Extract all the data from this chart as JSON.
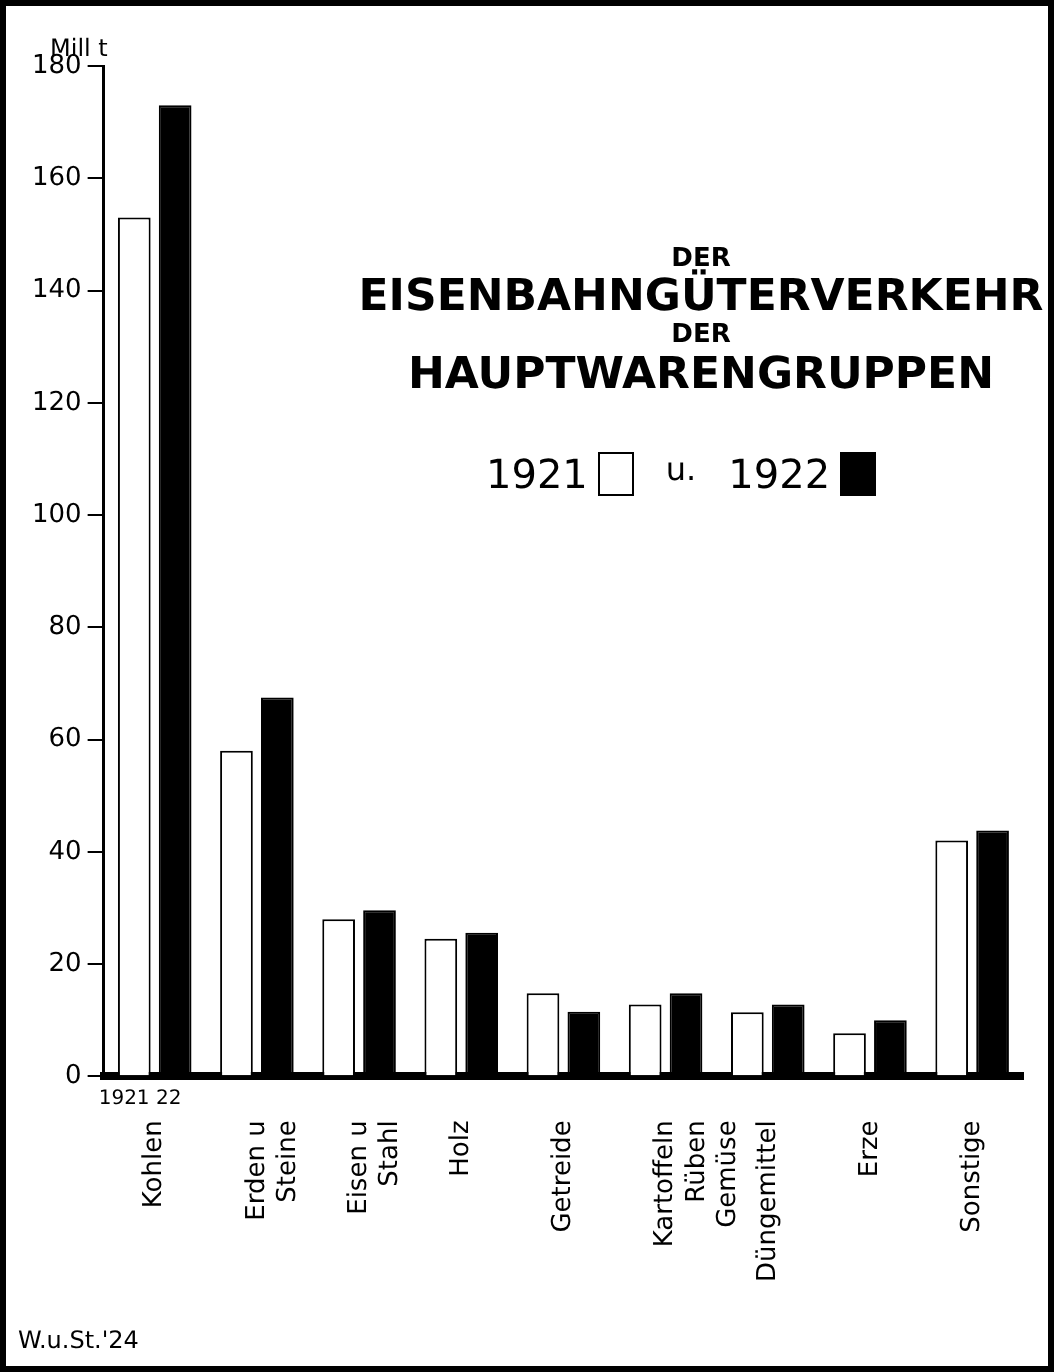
{
  "chart_data": {
    "type": "bar",
    "title": "DER\nEISENBAHNGÜTERVERKEHR\nDER\nHAUPTWARENGRUPPEN",
    "ylabel": "Mill t",
    "categories": [
      "Kohlen",
      "Erden u\nSteine",
      "Eisen u\nStahl",
      "Holz",
      "Getreide",
      "Kartoffeln\nRüben\nGemüse",
      "Düngemittel",
      "Erze",
      "Sonstige"
    ],
    "series": [
      {
        "name": "1921",
        "color": "#ffffff",
        "values": [
          153,
          58,
          28,
          24.5,
          14.8,
          12.8,
          11.4,
          7.7,
          42
        ]
      },
      {
        "name": "1922",
        "color": "#000000",
        "values": [
          173,
          67.5,
          29.6,
          25.6,
          11.5,
          14.8,
          12.8,
          10,
          43.8
        ]
      }
    ],
    "ylim": [
      0,
      180
    ],
    "yticks": [
      0,
      20,
      40,
      60,
      80,
      100,
      120,
      140,
      160,
      180
    ],
    "grid": false,
    "legend": "top right",
    "annotations": [
      "u.",
      "1921 22",
      "W.u.St.'24"
    ]
  }
}
